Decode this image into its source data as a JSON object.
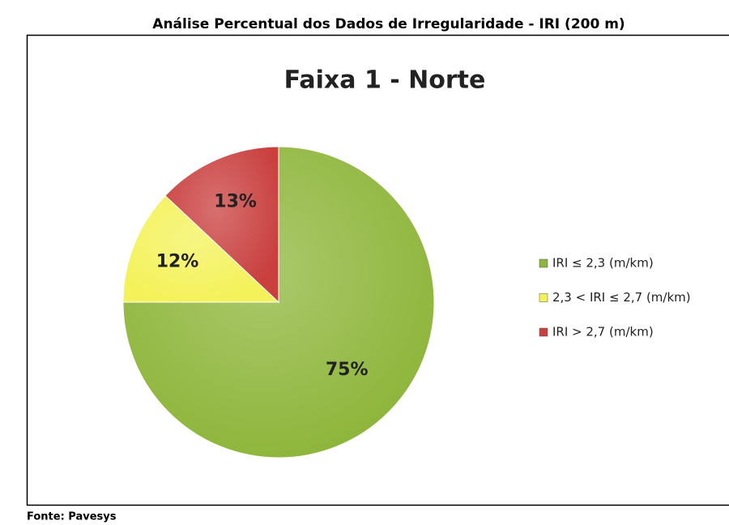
{
  "chart_data": {
    "type": "pie",
    "caption": "Análise Percentual dos Dados de Irregularidade - IRI (200 m)",
    "title": "Faixa 1 - Norte",
    "source": "Fonte: Pavesys",
    "series": [
      {
        "name": "IRI ≤ 2,3 (m/km)",
        "color": "#8fb63c",
        "values": [
          75
        ],
        "value_labels": [
          "75%"
        ]
      },
      {
        "name": "2,3 < IRI ≤ 2,7 (m/km)",
        "color": "#f4f25a",
        "values": [
          12
        ],
        "value_labels": [
          "12%"
        ]
      },
      {
        "name": "IRI > 2,7 (m/km)",
        "color": "#c9403f",
        "values": [
          13
        ],
        "value_labels": [
          "13%"
        ]
      }
    ],
    "legend": "right"
  }
}
